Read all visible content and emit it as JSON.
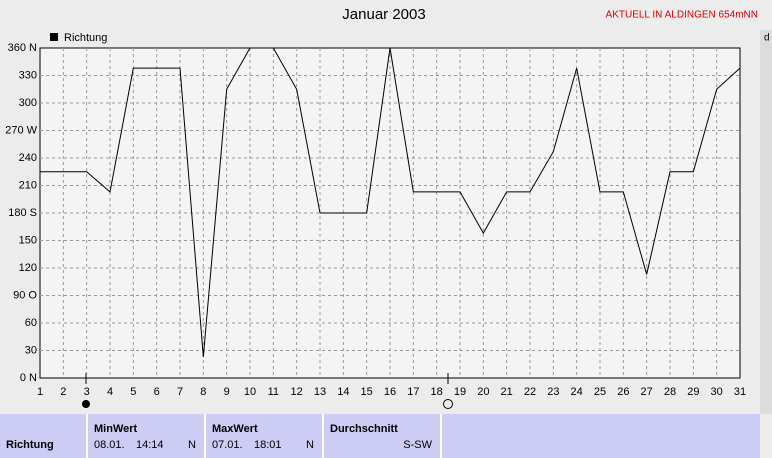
{
  "chart_data": {
    "type": "line",
    "title": "Januar 2003",
    "note": "AKTUELL IN ALDINGEN 654mNN",
    "right_label": "d",
    "x": [
      1,
      2,
      3,
      4,
      5,
      6,
      7,
      8,
      9,
      10,
      11,
      12,
      13,
      14,
      15,
      16,
      17,
      18,
      19,
      20,
      21,
      22,
      23,
      24,
      25,
      26,
      27,
      28,
      29,
      30,
      31
    ],
    "xlim": [
      1,
      31
    ],
    "xticks": [
      1,
      2,
      3,
      4,
      5,
      6,
      7,
      8,
      9,
      10,
      11,
      12,
      13,
      14,
      15,
      16,
      17,
      18,
      19,
      20,
      21,
      22,
      23,
      24,
      25,
      26,
      27,
      28,
      29,
      30,
      31
    ],
    "series": [
      {
        "name": "Richtung",
        "color": "#000000",
        "values": [
          225,
          225,
          225,
          203,
          338,
          338,
          338,
          23,
          315,
          360,
          360,
          315,
          180,
          180,
          180,
          360,
          203,
          203,
          203,
          158,
          203,
          203,
          247,
          338,
          203,
          203,
          113,
          225,
          225,
          315,
          338
        ]
      }
    ],
    "ylim": [
      0,
      360
    ],
    "yticks": [
      {
        "value": 0,
        "label": "0 N"
      },
      30,
      60,
      {
        "value": 90,
        "label": "90 O"
      },
      120,
      150,
      {
        "value": 180,
        "label": "180 S"
      },
      210,
      240,
      {
        "value": 270,
        "label": "270 W"
      },
      300,
      330,
      {
        "value": 360,
        "label": "360 N"
      }
    ],
    "grid": true
  },
  "table": {
    "row_label": "Richtung",
    "columns": [
      {
        "header": "MinWert",
        "date": "08.01.",
        "time": "14:14",
        "value": "N"
      },
      {
        "header": "MaxWert",
        "date": "07.01.",
        "time": "18:01",
        "value": "N"
      },
      {
        "header": "Durchschnitt",
        "value": "S-SW"
      }
    ]
  }
}
